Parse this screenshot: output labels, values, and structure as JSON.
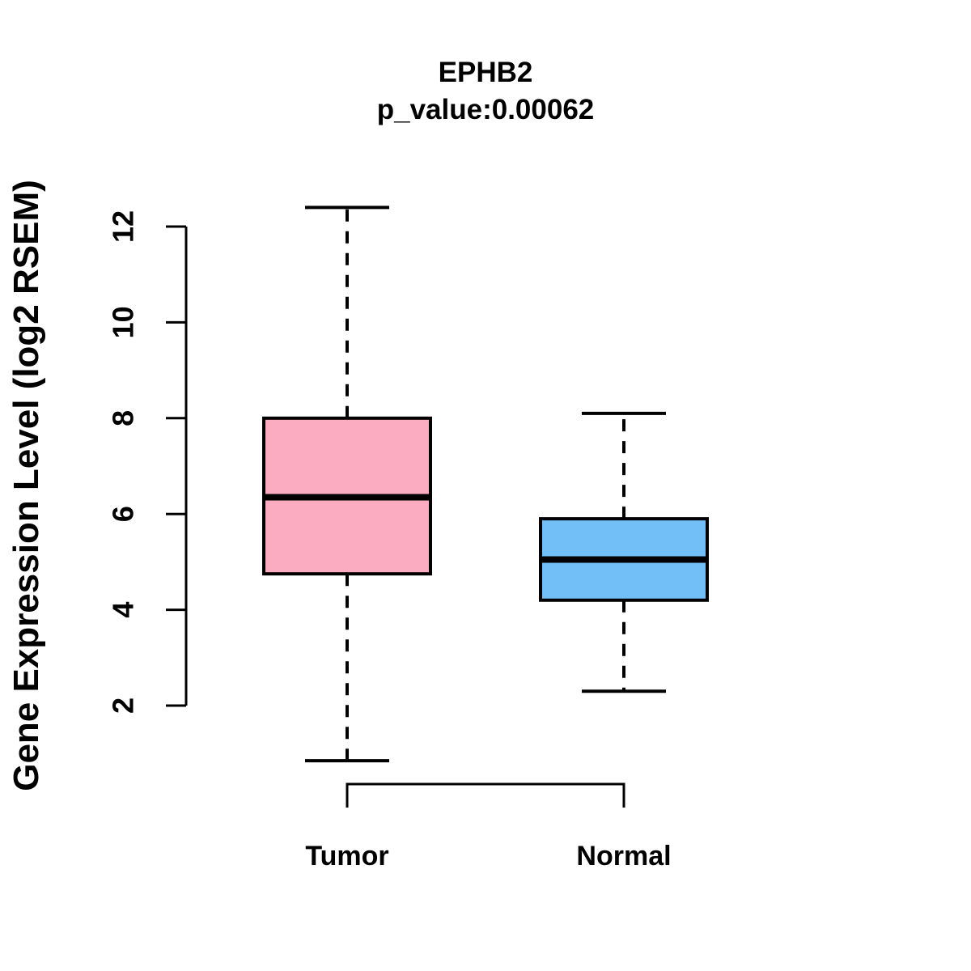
{
  "chart_data": {
    "type": "boxplot",
    "title": "EPHB2",
    "subtitle": "p_value:0.00062",
    "ylabel": "Gene Expression Level (log2 RSEM)",
    "yticks": [
      2,
      4,
      6,
      8,
      10,
      12
    ],
    "ylim": [
      0.85,
      12.4
    ],
    "grid": false,
    "legend": "none",
    "background_color": "#FFFFFF",
    "line_color": "#000000",
    "groups": [
      {
        "label": "Tumor",
        "color": "#FCACC0",
        "whisker_low": 0.85,
        "q1": 4.75,
        "median": 6.35,
        "q3": 8.0,
        "whisker_high": 12.4
      },
      {
        "label": "Normal",
        "color": "#72BEF6",
        "whisker_low": 2.3,
        "q1": 4.2,
        "median": 5.05,
        "q3": 5.9,
        "whisker_high": 8.1
      }
    ]
  }
}
